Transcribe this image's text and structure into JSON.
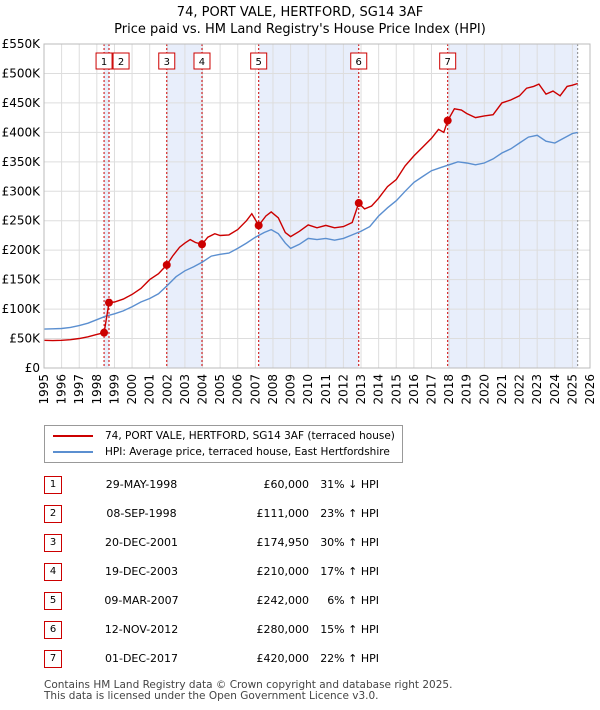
{
  "header": {
    "title": "74, PORT VALE, HERTFORD, SG14 3AF",
    "subtitle": "Price paid vs. HM Land Registry's House Price Index (HPI)"
  },
  "colors": {
    "property": "#cc0000",
    "hpi": "#5b8fd0",
    "shade": "#e8eefb",
    "marker_line": "#cc0000"
  },
  "chart_data": {
    "type": "line",
    "title": "74, PORT VALE, HERTFORD, SG14 3AF",
    "subtitle": "Price paid vs. HM Land Registry's House Price Index (HPI)",
    "xlim": [
      1995,
      2026
    ],
    "ylim": [
      0,
      550000
    ],
    "x_ticks": [
      "1995",
      "1996",
      "1997",
      "1998",
      "1999",
      "2000",
      "2001",
      "2002",
      "2003",
      "2004",
      "2005",
      "2006",
      "2007",
      "2008",
      "2009",
      "2010",
      "2011",
      "2012",
      "2013",
      "2014",
      "2015",
      "2016",
      "2017",
      "2018",
      "2019",
      "2020",
      "2021",
      "2022",
      "2023",
      "2024",
      "2025",
      "2026"
    ],
    "y_ticks": [
      {
        "value": 0,
        "label": "£0"
      },
      {
        "value": 50000,
        "label": "£50K"
      },
      {
        "value": 100000,
        "label": "£100K"
      },
      {
        "value": 150000,
        "label": "£150K"
      },
      {
        "value": 200000,
        "label": "£200K"
      },
      {
        "value": 250000,
        "label": "£250K"
      },
      {
        "value": 300000,
        "label": "£300K"
      },
      {
        "value": 350000,
        "label": "£350K"
      },
      {
        "value": 400000,
        "label": "£400K"
      },
      {
        "value": 450000,
        "label": "£450K"
      },
      {
        "value": 500000,
        "label": "£500K"
      },
      {
        "value": 550000,
        "label": "£550K"
      }
    ],
    "grid": true,
    "shaded_ranges": [
      [
        1998.41,
        1998.69
      ],
      [
        2001.97,
        2003.97
      ],
      [
        2007.19,
        2012.87
      ],
      [
        2017.92,
        2025.3
      ]
    ],
    "forecast_start": 2025.3,
    "series": [
      {
        "name": "74, PORT VALE, HERTFORD, SG14 3AF (terraced house)",
        "color": "#cc0000",
        "points": [
          [
            1995.0,
            47000
          ],
          [
            1995.5,
            46500
          ],
          [
            1996.0,
            47000
          ],
          [
            1996.5,
            48000
          ],
          [
            1997.0,
            50000
          ],
          [
            1997.5,
            53000
          ],
          [
            1998.0,
            57000
          ],
          [
            1998.41,
            60000
          ],
          [
            1998.69,
            111000
          ],
          [
            1999.0,
            112000
          ],
          [
            1999.5,
            117000
          ],
          [
            2000.0,
            125000
          ],
          [
            2000.5,
            135000
          ],
          [
            2001.0,
            150000
          ],
          [
            2001.5,
            160000
          ],
          [
            2001.97,
            174950
          ],
          [
            2002.3,
            190000
          ],
          [
            2002.7,
            205000
          ],
          [
            2003.0,
            212000
          ],
          [
            2003.3,
            218000
          ],
          [
            2003.6,
            213000
          ],
          [
            2003.97,
            210000
          ],
          [
            2004.3,
            222000
          ],
          [
            2004.7,
            228000
          ],
          [
            2005.0,
            225000
          ],
          [
            2005.5,
            226000
          ],
          [
            2006.0,
            235000
          ],
          [
            2006.5,
            250000
          ],
          [
            2006.8,
            262000
          ],
          [
            2007.19,
            242000
          ],
          [
            2007.6,
            258000
          ],
          [
            2007.9,
            265000
          ],
          [
            2008.3,
            255000
          ],
          [
            2008.7,
            230000
          ],
          [
            2009.0,
            223000
          ],
          [
            2009.5,
            232000
          ],
          [
            2010.0,
            243000
          ],
          [
            2010.5,
            238000
          ],
          [
            2011.0,
            242000
          ],
          [
            2011.5,
            238000
          ],
          [
            2012.0,
            240000
          ],
          [
            2012.5,
            247000
          ],
          [
            2012.87,
            280000
          ],
          [
            2013.2,
            270000
          ],
          [
            2013.6,
            275000
          ],
          [
            2014.0,
            288000
          ],
          [
            2014.5,
            308000
          ],
          [
            2015.0,
            320000
          ],
          [
            2015.5,
            343000
          ],
          [
            2016.0,
            360000
          ],
          [
            2016.5,
            375000
          ],
          [
            2017.0,
            390000
          ],
          [
            2017.4,
            405000
          ],
          [
            2017.7,
            400000
          ],
          [
            2017.92,
            420000
          ],
          [
            2018.3,
            440000
          ],
          [
            2018.7,
            438000
          ],
          [
            2019.0,
            432000
          ],
          [
            2019.5,
            425000
          ],
          [
            2020.0,
            428000
          ],
          [
            2020.5,
            430000
          ],
          [
            2021.0,
            450000
          ],
          [
            2021.5,
            455000
          ],
          [
            2022.0,
            462000
          ],
          [
            2022.4,
            475000
          ],
          [
            2022.8,
            478000
          ],
          [
            2023.1,
            482000
          ],
          [
            2023.5,
            465000
          ],
          [
            2023.9,
            470000
          ],
          [
            2024.3,
            462000
          ],
          [
            2024.7,
            478000
          ],
          [
            2025.0,
            480000
          ],
          [
            2025.3,
            483000
          ]
        ]
      },
      {
        "name": "HPI: Average price, terraced house, East Hertfordshire",
        "color": "#5b8fd0",
        "points": [
          [
            1995.0,
            66000
          ],
          [
            1995.5,
            66500
          ],
          [
            1996.0,
            67000
          ],
          [
            1996.5,
            69000
          ],
          [
            1997.0,
            72000
          ],
          [
            1997.5,
            76000
          ],
          [
            1998.0,
            82000
          ],
          [
            1998.5,
            88000
          ],
          [
            1999.0,
            92000
          ],
          [
            1999.5,
            97000
          ],
          [
            2000.0,
            104000
          ],
          [
            2000.5,
            112000
          ],
          [
            2001.0,
            118000
          ],
          [
            2001.5,
            126000
          ],
          [
            2002.0,
            140000
          ],
          [
            2002.5,
            155000
          ],
          [
            2003.0,
            165000
          ],
          [
            2003.5,
            172000
          ],
          [
            2004.0,
            180000
          ],
          [
            2004.5,
            190000
          ],
          [
            2005.0,
            193000
          ],
          [
            2005.5,
            195000
          ],
          [
            2006.0,
            203000
          ],
          [
            2006.5,
            212000
          ],
          [
            2007.0,
            222000
          ],
          [
            2007.5,
            230000
          ],
          [
            2007.9,
            235000
          ],
          [
            2008.3,
            228000
          ],
          [
            2008.7,
            212000
          ],
          [
            2009.0,
            203000
          ],
          [
            2009.5,
            210000
          ],
          [
            2010.0,
            220000
          ],
          [
            2010.5,
            218000
          ],
          [
            2011.0,
            220000
          ],
          [
            2011.5,
            217000
          ],
          [
            2012.0,
            220000
          ],
          [
            2012.5,
            226000
          ],
          [
            2013.0,
            232000
          ],
          [
            2013.5,
            240000
          ],
          [
            2014.0,
            258000
          ],
          [
            2014.5,
            272000
          ],
          [
            2015.0,
            284000
          ],
          [
            2015.5,
            300000
          ],
          [
            2016.0,
            315000
          ],
          [
            2016.5,
            325000
          ],
          [
            2017.0,
            335000
          ],
          [
            2017.5,
            340000
          ],
          [
            2018.0,
            345000
          ],
          [
            2018.5,
            350000
          ],
          [
            2019.0,
            348000
          ],
          [
            2019.5,
            345000
          ],
          [
            2020.0,
            348000
          ],
          [
            2020.5,
            355000
          ],
          [
            2021.0,
            365000
          ],
          [
            2021.5,
            372000
          ],
          [
            2022.0,
            382000
          ],
          [
            2022.5,
            392000
          ],
          [
            2023.0,
            395000
          ],
          [
            2023.5,
            385000
          ],
          [
            2024.0,
            382000
          ],
          [
            2024.5,
            390000
          ],
          [
            2025.0,
            398000
          ],
          [
            2025.3,
            400000
          ]
        ]
      }
    ],
    "sales": [
      {
        "id": "1",
        "x": 1998.41,
        "price": 60000
      },
      {
        "id": "2",
        "x": 1998.69,
        "price": 111000
      },
      {
        "id": "3",
        "x": 2001.97,
        "price": 174950
      },
      {
        "id": "4",
        "x": 2003.97,
        "price": 210000
      },
      {
        "id": "5",
        "x": 2007.19,
        "price": 242000
      },
      {
        "id": "6",
        "x": 2012.87,
        "price": 280000
      },
      {
        "id": "7",
        "x": 2017.92,
        "price": 420000
      }
    ]
  },
  "legend": {
    "property": "74, PORT VALE, HERTFORD, SG14 3AF (terraced house)",
    "hpi": "HPI: Average price, terraced house, East Hertfordshire"
  },
  "sales_table": [
    {
      "num": "1",
      "date": "29-MAY-1998",
      "price": "£60,000",
      "hpi": "31% ↓ HPI"
    },
    {
      "num": "2",
      "date": "08-SEP-1998",
      "price": "£111,000",
      "hpi": "23% ↑ HPI"
    },
    {
      "num": "3",
      "date": "20-DEC-2001",
      "price": "£174,950",
      "hpi": "30% ↑ HPI"
    },
    {
      "num": "4",
      "date": "19-DEC-2003",
      "price": "£210,000",
      "hpi": "17% ↑ HPI"
    },
    {
      "num": "5",
      "date": "09-MAR-2007",
      "price": "£242,000",
      "hpi": "6% ↑ HPI"
    },
    {
      "num": "6",
      "date": "12-NOV-2012",
      "price": "£280,000",
      "hpi": "15% ↑ HPI"
    },
    {
      "num": "7",
      "date": "01-DEC-2017",
      "price": "£420,000",
      "hpi": "22% ↑ HPI"
    }
  ],
  "footer": {
    "line1": "Contains HM Land Registry data © Crown copyright and database right 2025.",
    "line2": "This data is licensed under the Open Government Licence v3.0."
  }
}
